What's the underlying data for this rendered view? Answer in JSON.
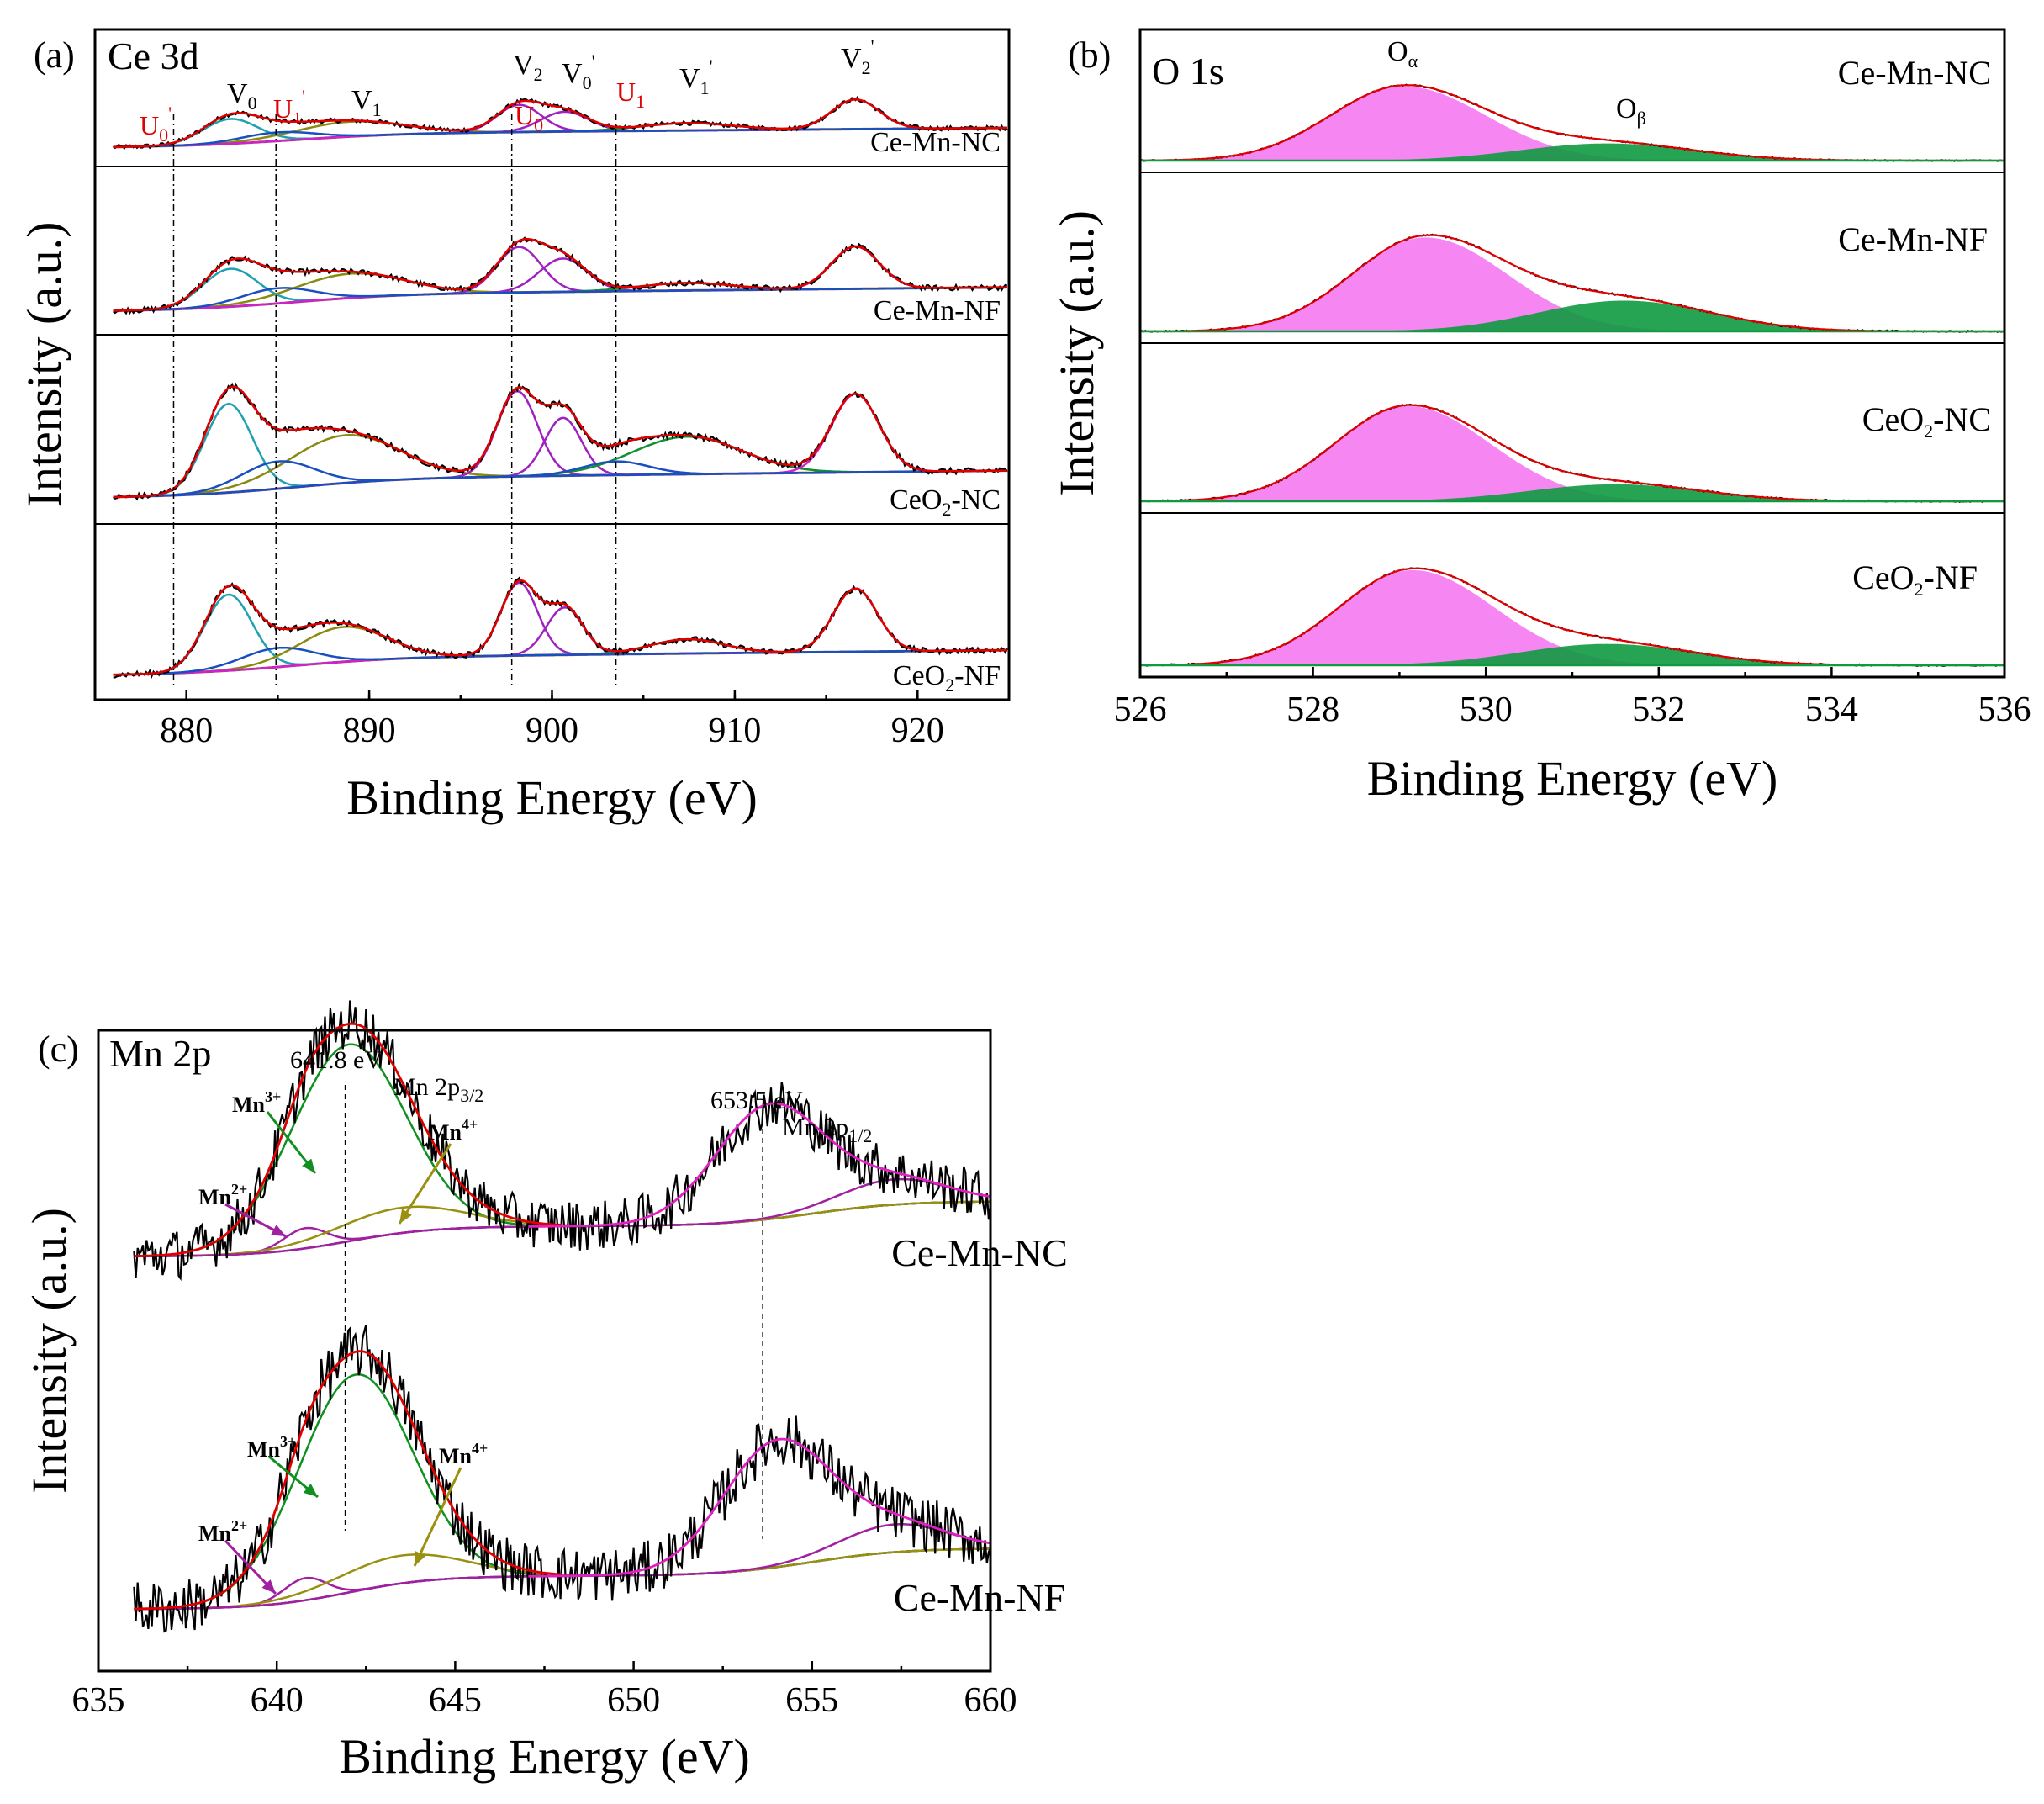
{
  "chart_data": [
    {
      "type": "line",
      "panel": "(a)",
      "title": "Ce 3d",
      "xlabel": "Binding Energy (eV)",
      "ylabel": "Intensity (a.u.)",
      "xlim": [
        875,
        925
      ],
      "xticks": [
        880,
        890,
        900,
        910,
        920
      ],
      "samples": [
        "Ce-Mn-NC",
        "Ce-Mn-NF",
        "CeO₂-NC",
        "CeO₂-NF"
      ],
      "reference_lines_eV": [
        879.3,
        884.9,
        897.8,
        903.5
      ],
      "peaks": [
        {
          "label": "V0",
          "base": "V",
          "sub": "0",
          "sup": "",
          "eV": 882.4,
          "color": "#000000"
        },
        {
          "label": "V1",
          "base": "V",
          "sub": "1",
          "sup": "",
          "eV": 888.9,
          "color": "#000000"
        },
        {
          "label": "V2",
          "base": "V",
          "sub": "2",
          "sup": "",
          "eV": 898.2,
          "color": "#000000"
        },
        {
          "label": "V0'",
          "base": "V",
          "sub": "0",
          "sup": "'",
          "eV": 900.7,
          "color": "#000000"
        },
        {
          "label": "V1'",
          "base": "V",
          "sub": "1",
          "sup": "'",
          "eV": 907.4,
          "color": "#000000"
        },
        {
          "label": "V2'",
          "base": "V",
          "sub": "2",
          "sup": "'",
          "eV": 916.6,
          "color": "#000000"
        },
        {
          "label": "U0'",
          "base": "U",
          "sub": "0",
          "sup": "'",
          "eV": 879.3,
          "color": "#e00000"
        },
        {
          "label": "U1'",
          "base": "U",
          "sub": "1",
          "sup": "'",
          "eV": 884.9,
          "color": "#e00000"
        },
        {
          "label": "U0",
          "base": "U",
          "sub": "0",
          "sup": "",
          "eV": 897.8,
          "color": "#e00000"
        },
        {
          "label": "U1",
          "base": "U",
          "sub": "1",
          "sup": "",
          "eV": 903.5,
          "color": "#e00000"
        }
      ],
      "series_colors": {
        "raw": "#000000",
        "envelope": "#e00000",
        "background": "#b5651d",
        "V0": "#20a0b0",
        "V1": "#8a8a10",
        "V2_V0p": "#a020c0",
        "V1p": "#109030",
        "V2p": "#d020d0",
        "U": "#1a4fc0"
      }
    },
    {
      "type": "area",
      "panel": "(b)",
      "title": "O 1s",
      "xlabel": "Binding Energy (eV)",
      "ylabel": "Intensity (a.u.)",
      "xlim": [
        526,
        536
      ],
      "xticks": [
        526,
        528,
        530,
        532,
        534,
        536
      ],
      "samples": [
        "Ce-Mn-NC",
        "Ce-Mn-NF",
        "CeO₂-NC",
        "CeO₂-NF"
      ],
      "components": [
        {
          "label": "Oα",
          "base": "O",
          "sub": "α",
          "eV": 529.1,
          "color": "#f57ff0"
        },
        {
          "label": "Oβ",
          "base": "O",
          "sub": "β",
          "eV": 531.4,
          "color": "#109a40"
        }
      ],
      "component_params": [
        {
          "a_center": 529.05,
          "a_h": 0.52,
          "b_center": 531.4,
          "b_h": 0.12
        },
        {
          "a_center": 529.3,
          "a_h": 0.55,
          "b_center": 531.6,
          "b_h": 0.18
        },
        {
          "a_center": 529.1,
          "a_h": 0.56,
          "b_center": 531.5,
          "b_h": 0.1
        },
        {
          "a_center": 529.15,
          "a_h": 0.58,
          "b_center": 531.4,
          "b_h": 0.13
        }
      ]
    },
    {
      "type": "line",
      "panel": "(c)",
      "title": "Mn 2p",
      "xlabel": "Binding Energy (eV)",
      "ylabel": "Intensity (a.u.)",
      "xlim": [
        635,
        660
      ],
      "xticks": [
        635,
        640,
        645,
        650,
        655,
        660
      ],
      "samples": [
        "Ce-Mn-NC",
        "Ce-Mn-NF"
      ],
      "peak_positions": [
        {
          "text": "641.8 eV",
          "eV": 641.8,
          "assignment_base": "Mn 2p",
          "assignment_sub": "3/2"
        },
        {
          "text": "653.5 eV",
          "eV": 653.5,
          "assignment_base": "Mn 2p",
          "assignment_sub": "1/2"
        }
      ],
      "species": [
        {
          "label": "Mn2+",
          "base": "Mn",
          "sup": "2+",
          "color": "#a020a0"
        },
        {
          "label": "Mn3+",
          "base": "Mn",
          "sup": "3+",
          "color": "#109020"
        },
        {
          "label": "Mn4+",
          "base": "Mn",
          "sup": "4+",
          "color": "#9a9010"
        }
      ],
      "series_colors": {
        "raw": "#000000",
        "envelope": "#e00000",
        "background": "#1a1a90",
        "sat": "#a020a0",
        "p12": "#e020c0"
      }
    }
  ]
}
